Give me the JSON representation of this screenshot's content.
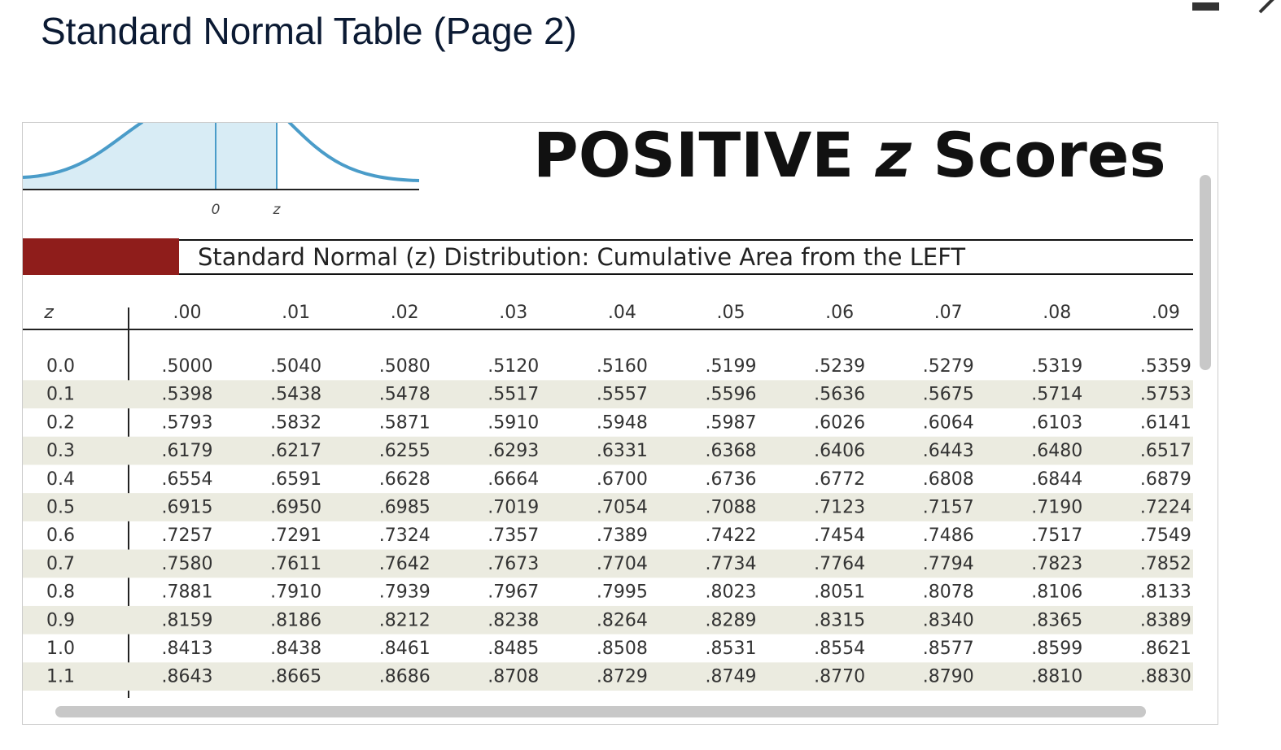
{
  "page_title": "Standard Normal Table (Page 2)",
  "figure": {
    "heading": [
      "POSITIVE",
      "z",
      "Scores"
    ],
    "curve_labels": [
      "0",
      "z"
    ],
    "subtitle": "Standard Normal (z) Distribution: Cumulative Area from the LEFT"
  },
  "table": {
    "header": [
      "z",
      ".00",
      ".01",
      ".02",
      ".03",
      ".04",
      ".05",
      ".06",
      ".07",
      ".08",
      ".09"
    ],
    "rows": [
      [
        "0.0",
        ".5000",
        ".5040",
        ".5080",
        ".5120",
        ".5160",
        ".5199",
        ".5239",
        ".5279",
        ".5319",
        ".5359"
      ],
      [
        "0.1",
        ".5398",
        ".5438",
        ".5478",
        ".5517",
        ".5557",
        ".5596",
        ".5636",
        ".5675",
        ".5714",
        ".5753"
      ],
      [
        "0.2",
        ".5793",
        ".5832",
        ".5871",
        ".5910",
        ".5948",
        ".5987",
        ".6026",
        ".6064",
        ".6103",
        ".6141"
      ],
      [
        "0.3",
        ".6179",
        ".6217",
        ".6255",
        ".6293",
        ".6331",
        ".6368",
        ".6406",
        ".6443",
        ".6480",
        ".6517"
      ],
      [
        "0.4",
        ".6554",
        ".6591",
        ".6628",
        ".6664",
        ".6700",
        ".6736",
        ".6772",
        ".6808",
        ".6844",
        ".6879"
      ],
      [
        "0.5",
        ".6915",
        ".6950",
        ".6985",
        ".7019",
        ".7054",
        ".7088",
        ".7123",
        ".7157",
        ".7190",
        ".7224"
      ],
      [
        "0.6",
        ".7257",
        ".7291",
        ".7324",
        ".7357",
        ".7389",
        ".7422",
        ".7454",
        ".7486",
        ".7517",
        ".7549"
      ],
      [
        "0.7",
        ".7580",
        ".7611",
        ".7642",
        ".7673",
        ".7704",
        ".7734",
        ".7764",
        ".7794",
        ".7823",
        ".7852"
      ],
      [
        "0.8",
        ".7881",
        ".7910",
        ".7939",
        ".7967",
        ".7995",
        ".8023",
        ".8051",
        ".8078",
        ".8106",
        ".8133"
      ],
      [
        "0.9",
        ".8159",
        ".8186",
        ".8212",
        ".8238",
        ".8264",
        ".8289",
        ".8315",
        ".8340",
        ".8365",
        ".8389"
      ],
      [
        "1.0",
        ".8413",
        ".8438",
        ".8461",
        ".8485",
        ".8508",
        ".8531",
        ".8554",
        ".8577",
        ".8599",
        ".8621"
      ],
      [
        "1.1",
        ".8643",
        ".8665",
        ".8686",
        ".8708",
        ".8729",
        ".8749",
        ".8770",
        ".8790",
        ".8810",
        ".8830"
      ]
    ]
  }
}
